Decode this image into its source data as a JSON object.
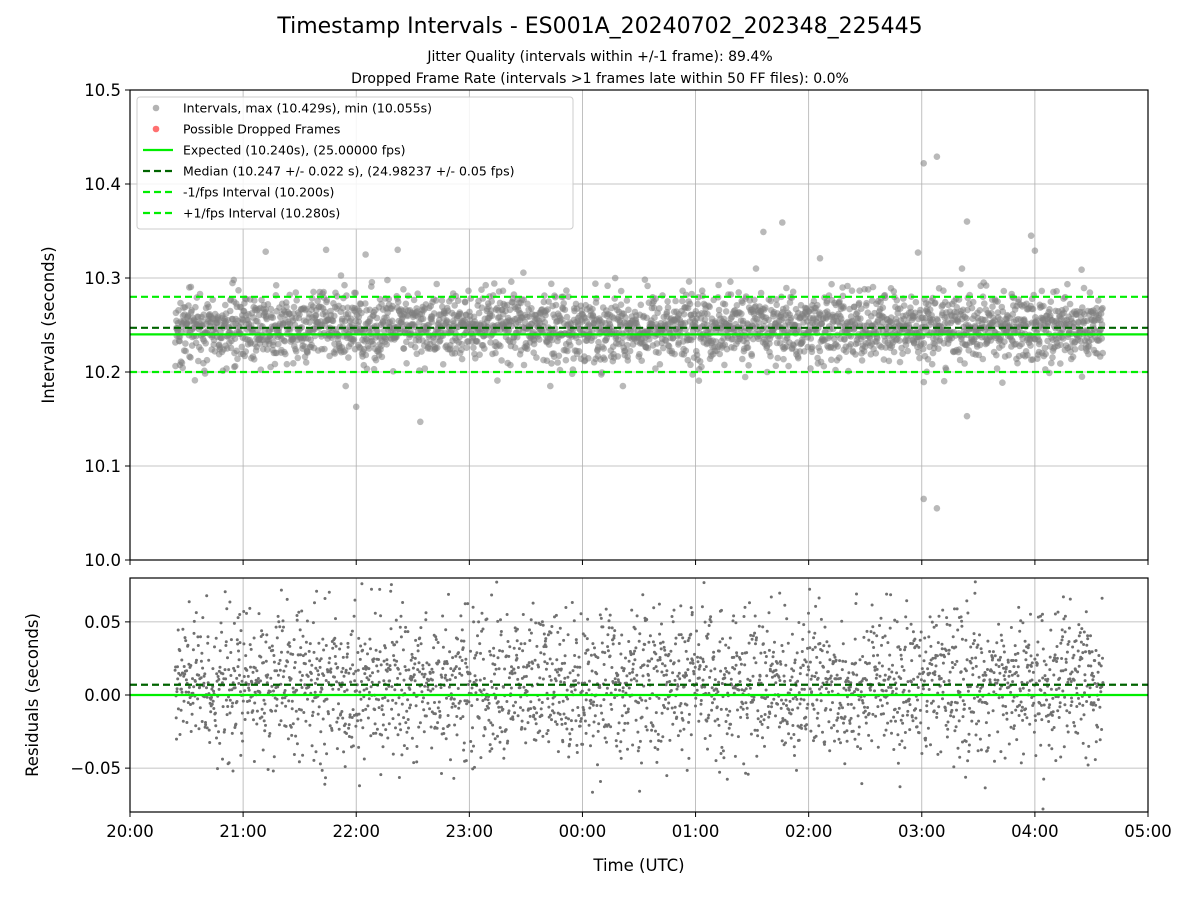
{
  "titles": {
    "main": "Timestamp Intervals - ES001A_20240702_202348_225445",
    "sub1": "Jitter Quality (intervals within +/-1 frame): 89.4%",
    "sub2": "Dropped Frame Rate (intervals >1 frames late within 50 FF files): 0.0%"
  },
  "chart_data": [
    {
      "type": "scatter",
      "ylabel": "Intervals (seconds)",
      "ylim": [
        10.0,
        10.5
      ],
      "yticks": [
        10.0,
        10.1,
        10.2,
        10.3,
        10.4,
        10.5
      ],
      "ytick_labels": [
        "10.0",
        "10.1",
        "10.2",
        "10.3",
        "10.4",
        "10.5"
      ],
      "x_range_utc": [
        "2024-07-02 20:00",
        "2024-07-03 05:00"
      ],
      "grid": true,
      "legend_position": "upper-left",
      "legend": [
        {
          "label": "Intervals, max (10.429s), min (10.055s)",
          "kind": "dot",
          "color": "#808080"
        },
        {
          "label": "Possible Dropped Frames",
          "kind": "dot",
          "color": "#ff6060"
        },
        {
          "label": "Expected (10.240s), (25.00000 fps)",
          "kind": "line",
          "color": "#00ee00",
          "dash": false
        },
        {
          "label": "Median (10.247 +/- 0.022 s), (24.98237 +/- 0.05 fps)",
          "kind": "line",
          "color": "#006400",
          "dash": true
        },
        {
          "label": "-1/fps Interval (10.200s)",
          "kind": "line",
          "color": "#00ee00",
          "dash": true
        },
        {
          "label": "+1/fps Interval (10.280s)",
          "kind": "line",
          "color": "#00ee00",
          "dash": true
        }
      ],
      "reference_lines": {
        "expected": 10.24,
        "median": 10.247,
        "minus_one_frame": 10.2,
        "plus_one_frame": 10.28
      },
      "data_span_utc": [
        "2024-07-02 20:24",
        "2024-07-03 04:36"
      ],
      "series": [
        {
          "name": "Intervals, max (10.429s), min (10.055s)",
          "color": "#808080",
          "center": 10.247,
          "spread_sd": 0.022,
          "approx_count": 2860,
          "notable_points": [
            {
              "x": "2024-07-02 21:12",
              "y": 10.328
            },
            {
              "x": "2024-07-02 21:44",
              "y": 10.33
            },
            {
              "x": "2024-07-02 22:00",
              "y": 10.163
            },
            {
              "x": "2024-07-02 22:05",
              "y": 10.325
            },
            {
              "x": "2024-07-02 22:22",
              "y": 10.33
            },
            {
              "x": "2024-07-02 22:34",
              "y": 10.147
            },
            {
              "x": "2024-07-03 01:36",
              "y": 10.349
            },
            {
              "x": "2024-07-03 01:46",
              "y": 10.359
            },
            {
              "x": "2024-07-03 02:06",
              "y": 10.321
            },
            {
              "x": "2024-07-03 02:58",
              "y": 10.327
            },
            {
              "x": "2024-07-03 03:01",
              "y": 10.422
            },
            {
              "x": "2024-07-03 03:01",
              "y": 10.065
            },
            {
              "x": "2024-07-03 03:08",
              "y": 10.429
            },
            {
              "x": "2024-07-03 03:08",
              "y": 10.055
            },
            {
              "x": "2024-07-03 03:24",
              "y": 10.36
            },
            {
              "x": "2024-07-03 03:24",
              "y": 10.153
            },
            {
              "x": "2024-07-03 03:58",
              "y": 10.345
            },
            {
              "x": "2024-07-03 04:00",
              "y": 10.329
            }
          ]
        },
        {
          "name": "Possible Dropped Frames",
          "color": "#ff6060",
          "points": []
        }
      ]
    },
    {
      "type": "scatter",
      "ylabel": "Residuals (seconds)",
      "xlabel": "Time (UTC)",
      "ylim": [
        -0.08,
        0.08
      ],
      "yticks": [
        -0.05,
        0.0,
        0.05
      ],
      "ytick_labels": [
        "−0.05",
        "0.00",
        "0.05"
      ],
      "x_range_utc": [
        "2024-07-02 20:00",
        "2024-07-03 05:00"
      ],
      "xtick_labels": [
        "20:00",
        "21:00",
        "22:00",
        "23:00",
        "00:00",
        "01:00",
        "02:00",
        "03:00",
        "04:00",
        "05:00"
      ],
      "grid": true,
      "reference_lines": {
        "zero": 0.0,
        "median_offset": 0.007
      },
      "series": [
        {
          "name": "Residuals",
          "color": "#707070",
          "center": 0.007,
          "spread_sd": 0.025,
          "approx_count": 2860
        }
      ]
    }
  ]
}
